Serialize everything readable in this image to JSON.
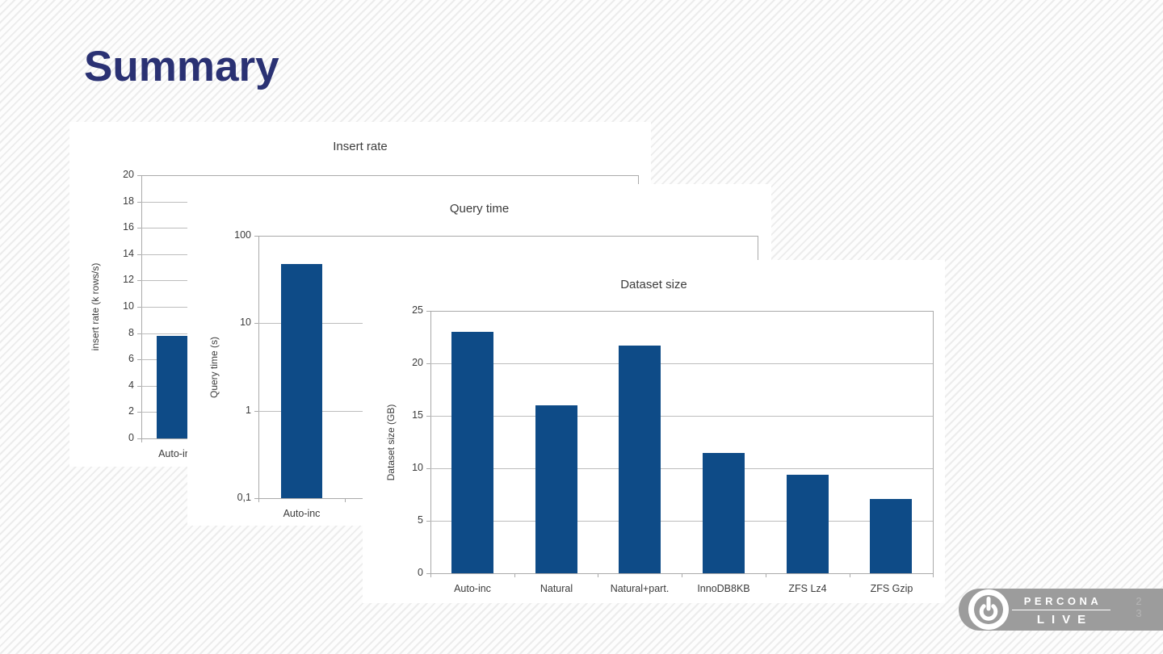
{
  "slide": {
    "title": "Summary",
    "page_number": {
      "line1": "2",
      "line2": "3"
    }
  },
  "logo": {
    "icon": "power-icon",
    "line1": "PERCONA",
    "line2": "LIVE"
  },
  "colors": {
    "bar": "#0e4b87",
    "title_navy": "#2a3173",
    "logo_pill": "#9c9c9c",
    "axis_gray": "#aaaaaa",
    "grid_gray": "#bdbdbd"
  },
  "chart_data": [
    {
      "id": "insert-rate",
      "type": "bar",
      "title": "Insert rate",
      "ylabel": "insert rate (k rows/s)",
      "scale": "linear",
      "ylim": [
        0,
        20
      ],
      "yticks": [
        0,
        2,
        4,
        6,
        8,
        10,
        12,
        14,
        16,
        18,
        20
      ],
      "ytick_labels": [
        "0",
        "2",
        "4",
        "6",
        "8",
        "10",
        "12",
        "14",
        "16",
        "18",
        "20"
      ],
      "grid": true,
      "legend": "none",
      "categories": [
        "Auto-inc"
      ],
      "values": [
        7.8
      ],
      "note": "partially hidden behind Query time chart"
    },
    {
      "id": "query-time",
      "type": "bar",
      "title": "Query time",
      "ylabel": "Query time (s)",
      "scale": "log",
      "ylim": [
        0.1,
        100
      ],
      "yticks": [
        0.1,
        1,
        10,
        100
      ],
      "ytick_labels": [
        "0,1",
        "1",
        "10",
        "100"
      ],
      "grid": true,
      "legend": "none",
      "categories": [
        "Auto-inc"
      ],
      "values": [
        48
      ],
      "note": "partially hidden behind Dataset size chart"
    },
    {
      "id": "dataset-size",
      "type": "bar",
      "title": "Dataset size",
      "ylabel": "Dataset size (GB)",
      "scale": "linear",
      "ylim": [
        0,
        25
      ],
      "yticks": [
        0,
        5,
        10,
        15,
        20,
        25
      ],
      "ytick_labels": [
        "0",
        "5",
        "10",
        "15",
        "20",
        "25"
      ],
      "grid": true,
      "legend": "none",
      "categories": [
        "Auto-inc",
        "Natural",
        "Natural+part.",
        "InnoDB8KB",
        "ZFS Lz4",
        "ZFS Gzip"
      ],
      "values": [
        23,
        16,
        21.7,
        11.5,
        9.4,
        7.1
      ]
    }
  ]
}
